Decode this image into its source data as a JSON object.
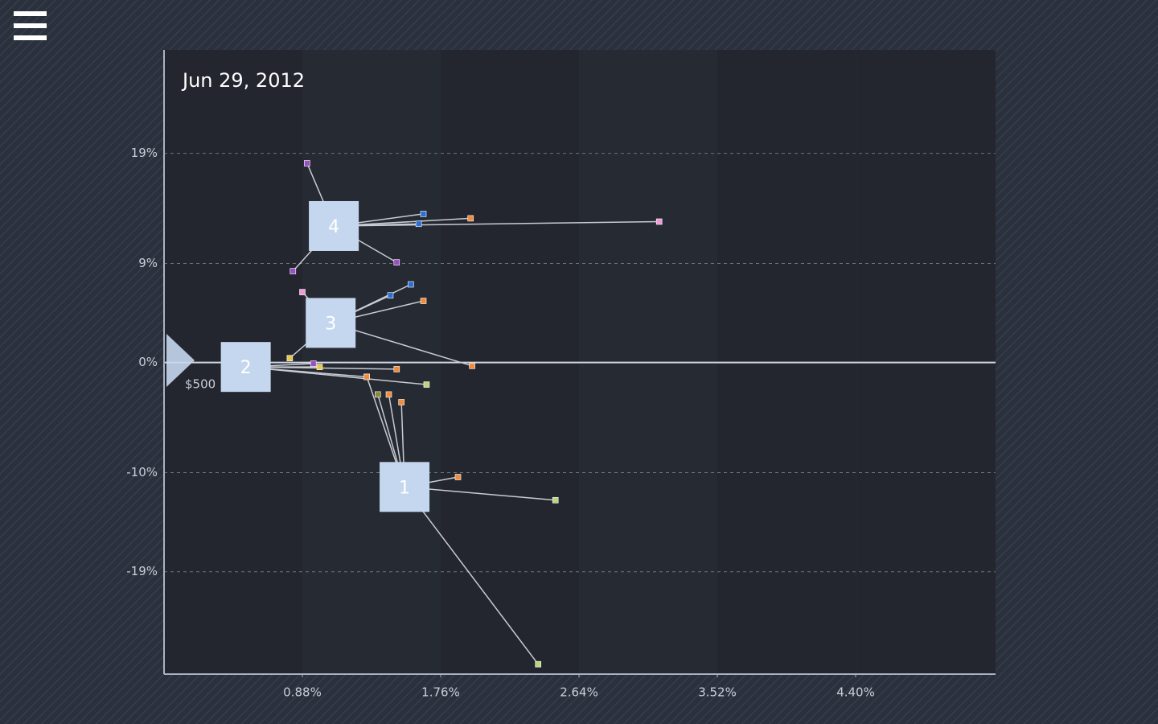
{
  "chart_data": {
    "type": "scatter",
    "title": "Jun 29, 2012",
    "annotation": "$500",
    "xlim": [
      0,
      5.29
    ],
    "ylim": [
      -28.3,
      28.4
    ],
    "xticks": [
      {
        "value": 0.88,
        "label": "0.88%"
      },
      {
        "value": 1.76,
        "label": "1.76%"
      },
      {
        "value": 2.64,
        "label": "2.64%"
      },
      {
        "value": 3.52,
        "label": "3.52%"
      },
      {
        "value": 4.4,
        "label": "4.40%"
      }
    ],
    "yticks": [
      {
        "value": 19,
        "label": "19%"
      },
      {
        "value": 9,
        "label": "9%"
      },
      {
        "value": 0,
        "label": "0%"
      },
      {
        "value": -10,
        "label": "-10%"
      },
      {
        "value": -19,
        "label": "-19%"
      }
    ],
    "grid": true,
    "node_color": "#c5d7ee",
    "series": [
      {
        "name": "1",
        "x": 1.53,
        "y": -11.3,
        "points": {
          "x": [
            1.29,
            1.36,
            1.43,
            1.51,
            1.87,
            2.49,
            2.38
          ],
          "y": [
            -1.3,
            -2.9,
            -2.9,
            -3.6,
            -10.4,
            -12.5,
            -27.4
          ],
          "colors": [
            "#f08c3c",
            "#8a8a3a",
            "#f08c3c",
            "#f08c3c",
            "#f08c3c",
            "#b8d67a",
            "#b8d67a"
          ]
        }
      },
      {
        "name": "2",
        "x": 0.52,
        "y": -0.4,
        "points": {
          "x": [
            0.95,
            0.99,
            1.48,
            1.67,
            1.29
          ],
          "y": [
            -0.1,
            -0.4,
            -0.6,
            -2.0,
            -1.3
          ],
          "colors": [
            "#9b4fc4",
            "#e8c84a",
            "#f08c3c",
            "#b8d67a",
            "#f08c3c"
          ]
        }
      },
      {
        "name": "3",
        "x": 1.06,
        "y": 3.6,
        "points": {
          "x": [
            0.88,
            1.44,
            1.57,
            1.65,
            1.96,
            0.8
          ],
          "y": [
            6.4,
            6.1,
            7.1,
            5.6,
            -0.3,
            0.4
          ],
          "colors": [
            "#f29ad8",
            "#2a6fd6",
            "#2a6fd6",
            "#f08c3c",
            "#f08c3c",
            "#e8c84a"
          ]
        }
      },
      {
        "name": "4",
        "x": 1.08,
        "y": 12.4,
        "points": {
          "x": [
            0.91,
            0.82,
            1.48,
            1.65,
            1.62,
            1.95,
            3.15
          ],
          "y": [
            18.1,
            8.3,
            9.1,
            13.5,
            12.6,
            13.1,
            12.8
          ],
          "colors": [
            "#9b4fc4",
            "#9b4fc4",
            "#9b4fc4",
            "#2a6fd6",
            "#2a6fd6",
            "#f08c3c",
            "#f29ad8"
          ]
        }
      }
    ]
  }
}
